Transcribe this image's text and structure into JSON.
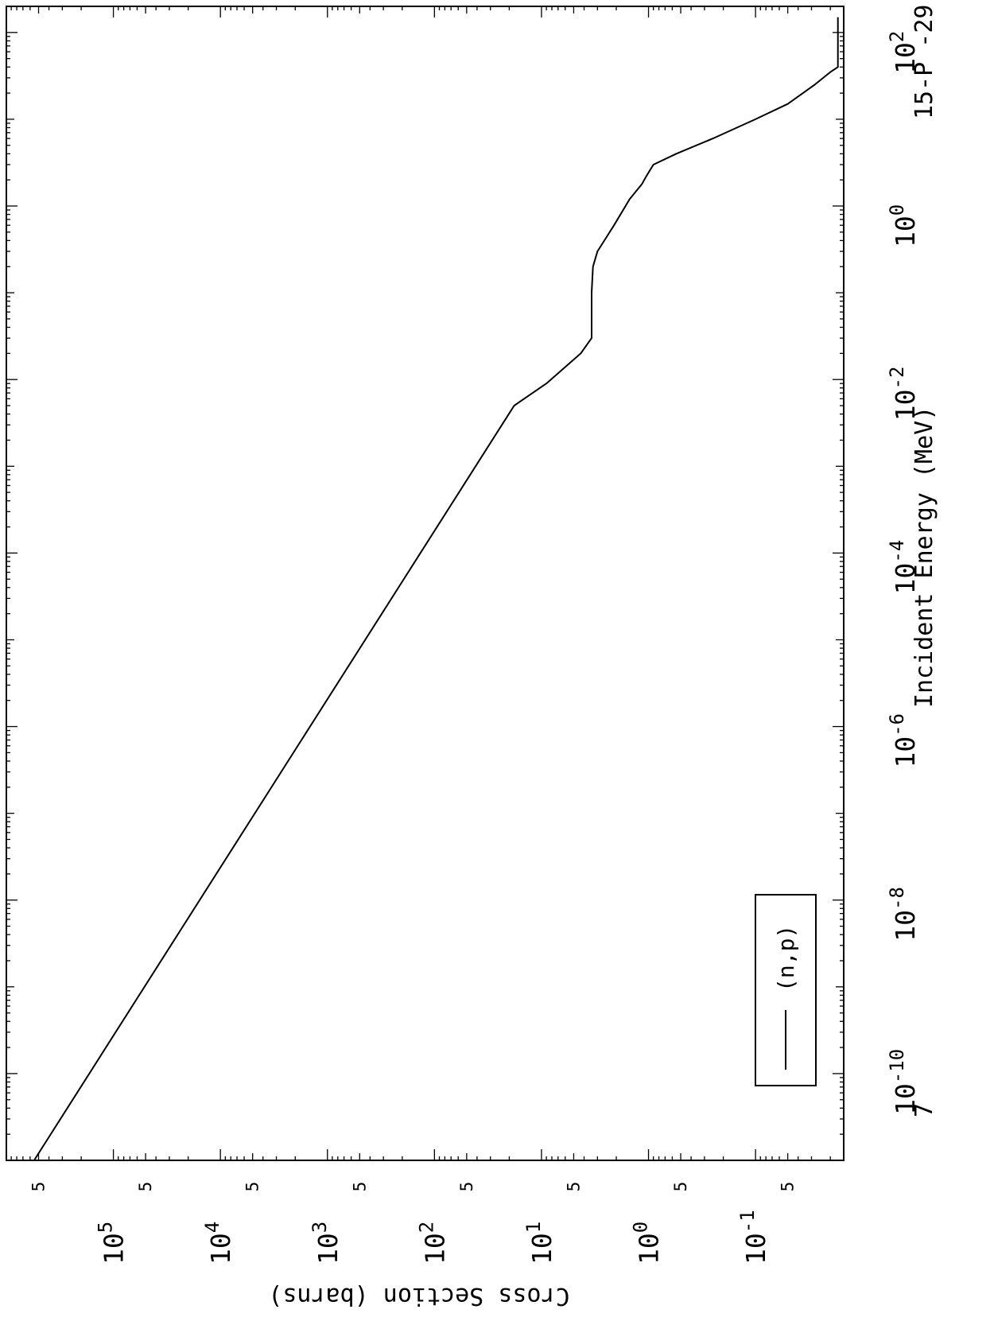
{
  "chart_data": {
    "type": "line",
    "orientation": "rotated-90-clockwise",
    "xlabel": "Incident Energy (MeV)",
    "ylabel": "Cross Section (barns)",
    "xscale": "log",
    "yscale": "log",
    "xlim": [
      1e-11,
      200
    ],
    "ylim": [
      0.015,
      1000000
    ],
    "x_ticks": [
      {
        "base": "10",
        "exp": "-10",
        "value": 1e-10
      },
      {
        "base": "10",
        "exp": "-8",
        "value": 1e-08
      },
      {
        "base": "10",
        "exp": "-6",
        "value": 1e-06
      },
      {
        "base": "10",
        "exp": "-4",
        "value": 0.0001
      },
      {
        "base": "10",
        "exp": "-2",
        "value": 0.01
      },
      {
        "base": "10",
        "exp": "0",
        "value": 1
      },
      {
        "base": "10",
        "exp": "2",
        "value": 100
      }
    ],
    "y_ticks": [
      {
        "base": "10",
        "exp": "5",
        "value": 100000
      },
      {
        "base": "10",
        "exp": "4",
        "value": 10000
      },
      {
        "base": "10",
        "exp": "3",
        "value": 1000
      },
      {
        "base": "10",
        "exp": "2",
        "value": 100
      },
      {
        "base": "10",
        "exp": "1",
        "value": 10
      },
      {
        "base": "10",
        "exp": "0",
        "value": 1
      },
      {
        "base": "10",
        "exp": "-1",
        "value": 0.1
      }
    ],
    "y_five_label": "5",
    "legend": {
      "position": "bottom-left",
      "entries": [
        "(n,p)"
      ]
    },
    "series": [
      {
        "name": "(n,p)",
        "color": "#000000",
        "points": [
          [
            1e-11,
            550000
          ],
          [
            0.005,
            18
          ],
          [
            0.009,
            9
          ],
          [
            0.02,
            4.3
          ],
          [
            0.03,
            3.4
          ],
          [
            0.1,
            3.4
          ],
          [
            0.2,
            3.3
          ],
          [
            0.3,
            3.0
          ],
          [
            0.6,
            2.1
          ],
          [
            1.2,
            1.5
          ],
          [
            1.8,
            1.15
          ],
          [
            2.2,
            1.05
          ],
          [
            3.0,
            0.9
          ],
          [
            4.0,
            0.55
          ],
          [
            6.0,
            0.25
          ],
          [
            10.0,
            0.1
          ],
          [
            15.0,
            0.05
          ],
          [
            25.0,
            0.028
          ],
          [
            35.0,
            0.02
          ],
          [
            40.0,
            0.017
          ],
          [
            150.0,
            0.017
          ]
        ]
      }
    ]
  },
  "corner_labels": {
    "material": "15-P -29",
    "left_number": "7"
  }
}
